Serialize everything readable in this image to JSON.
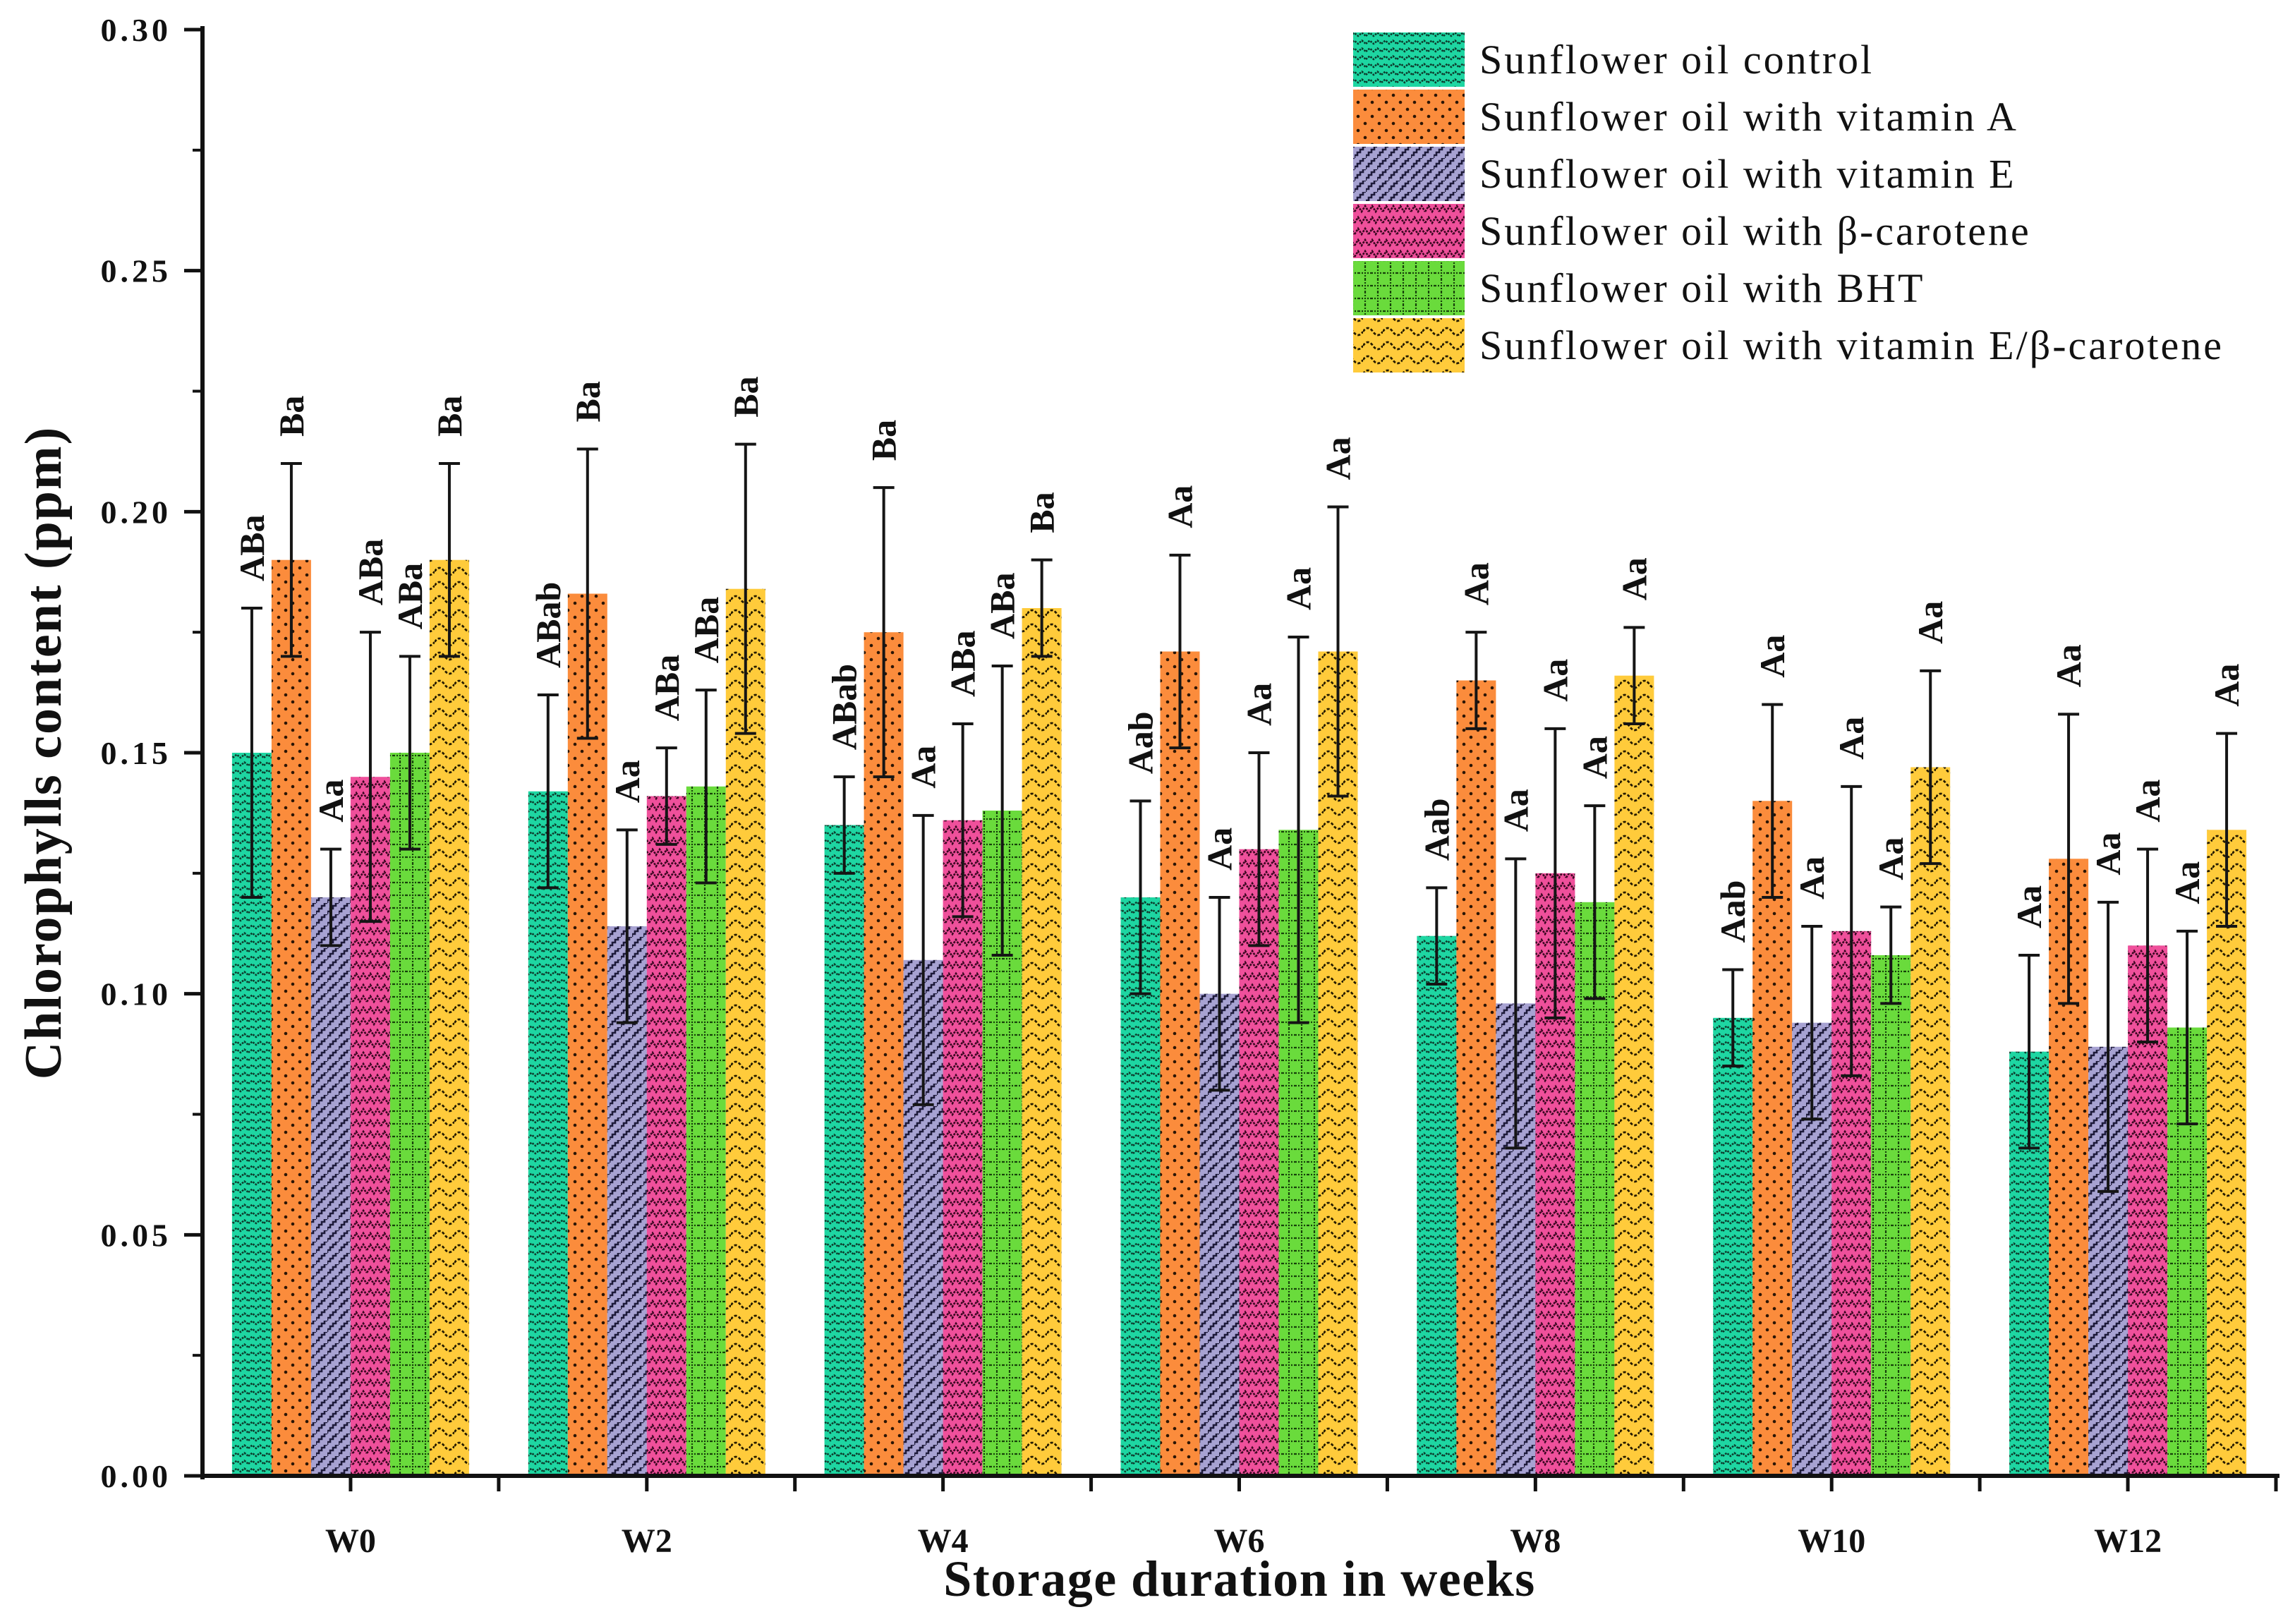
{
  "chart_data": {
    "type": "bar",
    "xlabel": "Storage duration in weeks",
    "ylabel": "Chlorophylls content (ppm)",
    "ylim": [
      0,
      0.3
    ],
    "yticks": [
      "0.00",
      "0.05",
      "0.10",
      "0.15",
      "0.20",
      "0.25",
      "0.30"
    ],
    "categories": [
      "W0",
      "W2",
      "W4",
      "W6",
      "W8",
      "W10",
      "W12"
    ],
    "error_bars": true,
    "series": [
      {
        "name": "Sunflower oil control",
        "color": "#1ED6A2",
        "values": [
          0.15,
          0.142,
          0.135,
          0.12,
          0.112,
          0.095,
          0.088
        ],
        "errors": [
          0.03,
          0.02,
          0.01,
          0.02,
          0.01,
          0.01,
          0.02
        ],
        "letters": [
          "ABa",
          "ABab",
          "ABab",
          "Aab",
          "Aab",
          "Aab",
          "Aa"
        ]
      },
      {
        "name": "Sunflower oil with vitamin A",
        "color": "#FB8C3C",
        "values": [
          0.19,
          0.183,
          0.175,
          0.171,
          0.165,
          0.14,
          0.128
        ],
        "errors": [
          0.02,
          0.03,
          0.03,
          0.02,
          0.01,
          0.02,
          0.03
        ],
        "letters": [
          "Ba",
          "Ba",
          "Ba",
          "Aa",
          "Aa",
          "Aa",
          "Aa"
        ]
      },
      {
        "name": "Sunflower oil with vitamin E",
        "color": "#A7A2D2",
        "values": [
          0.12,
          0.114,
          0.107,
          0.1,
          0.098,
          0.094,
          0.089
        ],
        "errors": [
          0.01,
          0.02,
          0.03,
          0.02,
          0.03,
          0.02,
          0.03
        ],
        "letters": [
          "Aa",
          "Aa",
          "Aa",
          "Aa",
          "Aa",
          "Aa",
          "Aa"
        ]
      },
      {
        "name": "Sunflower oil with β-carotene",
        "color": "#EF509B",
        "values": [
          0.145,
          0.141,
          0.136,
          0.13,
          0.125,
          0.113,
          0.11
        ],
        "errors": [
          0.03,
          0.01,
          0.02,
          0.02,
          0.03,
          0.03,
          0.02
        ],
        "letters": [
          "ABa",
          "ABa",
          "ABa",
          "Aa",
          "Aa",
          "Aa",
          "Aa"
        ]
      },
      {
        "name": "Sunflower oil with BHT",
        "color": "#6ADB3C",
        "values": [
          0.15,
          0.143,
          0.138,
          0.134,
          0.119,
          0.108,
          0.093
        ],
        "errors": [
          0.02,
          0.02,
          0.03,
          0.04,
          0.02,
          0.01,
          0.02
        ],
        "letters": [
          "ABa",
          "ABa",
          "ABa",
          "Aa",
          "Aa",
          "Aa",
          "Aa"
        ]
      },
      {
        "name": "Sunflower oil with vitamin E/β-carotene",
        "color": "#FFCB3B",
        "values": [
          0.19,
          0.184,
          0.18,
          0.171,
          0.166,
          0.147,
          0.134
        ],
        "errors": [
          0.02,
          0.03,
          0.01,
          0.03,
          0.01,
          0.02,
          0.02
        ],
        "letters": [
          "Ba",
          "Ba",
          "Ba",
          "Aa",
          "Aa",
          "Aa",
          "Aa"
        ]
      }
    ]
  }
}
